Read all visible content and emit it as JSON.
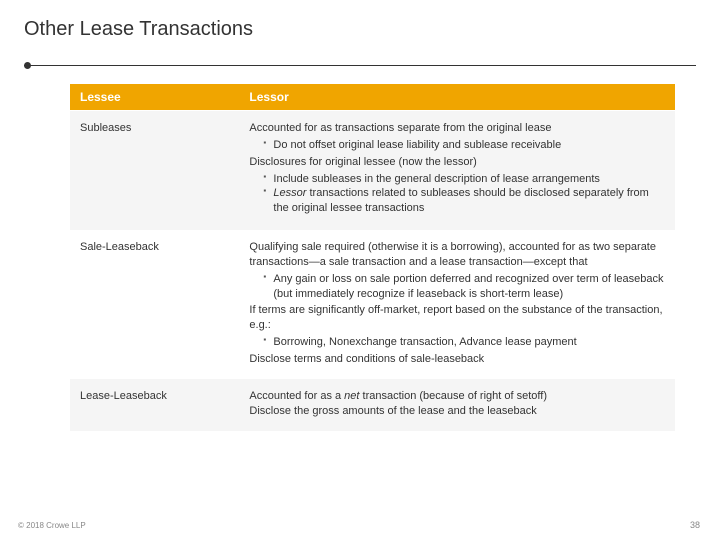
{
  "title": "Other Lease Transactions",
  "headers": {
    "c1": "Lessee",
    "c2": "Lessor"
  },
  "rows": {
    "r0": {
      "label": "Subleases",
      "l1": "Accounted for as transactions separate from the original lease",
      "b1": "Do not offset original lease liability and sublease receivable",
      "l2": "Disclosures for original lessee (now the lessor)",
      "b2": "Include subleases in the general description of lease arrangements",
      "b3a": "Lessor",
      "b3b": " transactions related to subleases should be disclosed separately from the original lessee transactions"
    },
    "r1": {
      "label": "Sale-Leaseback",
      "l1": "Qualifying sale required (otherwise it is a borrowing), accounted for as two separate transactions—a sale transaction and a lease transaction—except that",
      "b1": "Any gain or loss on sale portion deferred and recognized over term of leaseback (but immediately recognize if leaseback is short-term lease)",
      "l2": "If terms are significantly off-market, report based on the substance of the transaction, e.g.:",
      "b2": "Borrowing, Nonexchange transaction, Advance lease payment",
      "l3": "Disclose terms and conditions of sale-leaseback"
    },
    "r2": {
      "label": "Lease-Leaseback",
      "l1a": "Accounted for as a ",
      "l1b": "net",
      "l1c": " transaction (because of right of setoff)",
      "l2": "Disclose the gross amounts of the lease and the leaseback"
    }
  },
  "footer": "© 2018 Crowe LLP",
  "page": "38",
  "colors": {
    "header_bg": "#f0a500",
    "header_fg": "#ffffff",
    "row_alt_bg": "#f5f5f5",
    "text": "#333333"
  }
}
